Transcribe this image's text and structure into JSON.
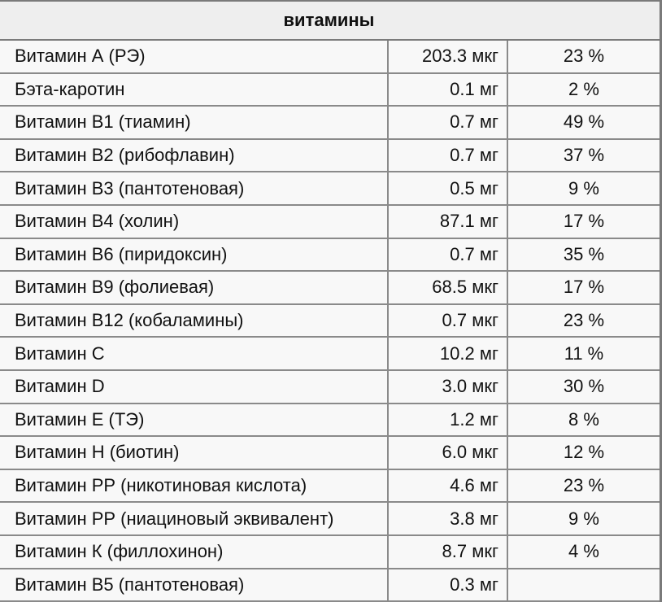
{
  "table": {
    "title": "витамины",
    "rows": [
      {
        "name": "Витамин А (РЭ)",
        "amount": "203.3 мкг",
        "percent": "23 %"
      },
      {
        "name": "Бэта-каротин",
        "amount": "0.1 мг",
        "percent": "2 %"
      },
      {
        "name": "Витамин В1 (тиамин)",
        "amount": "0.7 мг",
        "percent": "49 %"
      },
      {
        "name": "Витамин В2 (рибофлавин)",
        "amount": "0.7 мг",
        "percent": "37 %"
      },
      {
        "name": "Витамин В3 (пантотеновая)",
        "amount": "0.5 мг",
        "percent": "9 %"
      },
      {
        "name": "Витамин В4 (холин)",
        "amount": "87.1 мг",
        "percent": "17 %"
      },
      {
        "name": "Витамин В6 (пиридоксин)",
        "amount": "0.7 мг",
        "percent": "35 %"
      },
      {
        "name": "Витамин В9 (фолиевая)",
        "amount": "68.5 мкг",
        "percent": "17 %"
      },
      {
        "name": "Витамин В12 (кобаламины)",
        "amount": "0.7 мкг",
        "percent": "23 %"
      },
      {
        "name": "Витамин С",
        "amount": "10.2 мг",
        "percent": "11 %"
      },
      {
        "name": "Витамин D",
        "amount": "3.0 мкг",
        "percent": "30 %"
      },
      {
        "name": "Витамин Е (ТЭ)",
        "amount": "1.2 мг",
        "percent": "8 %"
      },
      {
        "name": "Витамин Н (биотин)",
        "amount": "6.0 мкг",
        "percent": "12 %"
      },
      {
        "name": "Витамин РР (никотиновая кислота)",
        "amount": "4.6 мг",
        "percent": "23 %"
      },
      {
        "name": "Витамин РР (ниациновый эквивалент)",
        "amount": "3.8 мг",
        "percent": "9 %"
      },
      {
        "name": "Витамин К (филлохинон)",
        "amount": "8.7 мкг",
        "percent": "4 %"
      },
      {
        "name": "Витамин В5 (пантотеновая)",
        "amount": "0.3 мг",
        "percent": ""
      }
    ]
  },
  "colors": {
    "header_bg": "#eeeeee",
    "row_bg": "#f8f8f8",
    "border": "#7a7a7a"
  }
}
